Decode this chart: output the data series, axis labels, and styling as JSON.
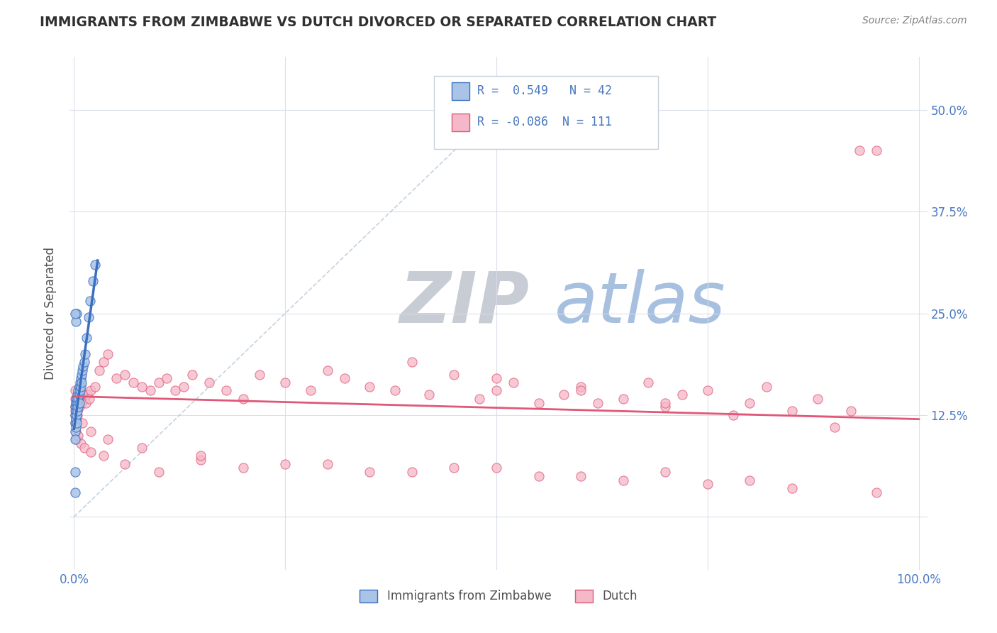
{
  "title": "IMMIGRANTS FROM ZIMBABWE VS DUTCH DIVORCED OR SEPARATED CORRELATION CHART",
  "source": "Source: ZipAtlas.com",
  "ylabel": "Divorced or Separated",
  "legend_label_1": "Immigrants from Zimbabwe",
  "legend_label_2": "Dutch",
  "R1": 0.549,
  "N1": 42,
  "R2": -0.086,
  "N2": 111,
  "color1": "#aac4e8",
  "color2": "#f5b8c8",
  "line_color1": "#3a6fc0",
  "line_color2": "#e05878",
  "bg_color": "#ffffff",
  "grid_color": "#d8dde8",
  "title_color": "#303030",
  "axis_label_color": "#505050",
  "tick_color": "#4878c0",
  "watermark_zip_color": "#c8ccd4",
  "watermark_atlas_color": "#a8c0e0",
  "xlim": [
    -0.005,
    1.01
  ],
  "ylim": [
    -0.065,
    0.565
  ],
  "ytick_positions": [
    0.0,
    0.125,
    0.25,
    0.375,
    0.5
  ],
  "ytick_labels": [
    "",
    "12.5%",
    "25.0%",
    "37.5%",
    "50.0%"
  ],
  "xtick_positions": [
    0.0,
    0.25,
    0.5,
    0.75,
    1.0
  ],
  "xtick_labels": [
    "0.0%",
    "",
    "",
    "",
    "100.0%"
  ],
  "blue_x": [
    0.001,
    0.001,
    0.001,
    0.001,
    0.001,
    0.002,
    0.002,
    0.002,
    0.002,
    0.003,
    0.003,
    0.003,
    0.003,
    0.004,
    0.004,
    0.004,
    0.005,
    0.005,
    0.005,
    0.006,
    0.006,
    0.006,
    0.007,
    0.007,
    0.008,
    0.008,
    0.009,
    0.009,
    0.01,
    0.011,
    0.012,
    0.013,
    0.015,
    0.017,
    0.019,
    0.022,
    0.025,
    0.003,
    0.002,
    0.001,
    0.001,
    0.001
  ],
  "blue_y": [
    0.135,
    0.125,
    0.115,
    0.105,
    0.095,
    0.14,
    0.13,
    0.12,
    0.11,
    0.145,
    0.135,
    0.125,
    0.115,
    0.15,
    0.14,
    0.13,
    0.155,
    0.145,
    0.135,
    0.16,
    0.15,
    0.14,
    0.165,
    0.155,
    0.17,
    0.16,
    0.175,
    0.165,
    0.18,
    0.185,
    0.19,
    0.2,
    0.22,
    0.245,
    0.265,
    0.29,
    0.31,
    0.25,
    0.24,
    0.25,
    0.055,
    0.03
  ],
  "pink_x": [
    0.001,
    0.001,
    0.001,
    0.002,
    0.002,
    0.003,
    0.003,
    0.004,
    0.004,
    0.005,
    0.005,
    0.006,
    0.006,
    0.007,
    0.008,
    0.009,
    0.01,
    0.012,
    0.014,
    0.016,
    0.018,
    0.02,
    0.025,
    0.03,
    0.035,
    0.04,
    0.05,
    0.06,
    0.07,
    0.08,
    0.09,
    0.1,
    0.11,
    0.12,
    0.13,
    0.14,
    0.16,
    0.18,
    0.2,
    0.22,
    0.25,
    0.28,
    0.3,
    0.32,
    0.35,
    0.38,
    0.4,
    0.42,
    0.45,
    0.48,
    0.5,
    0.52,
    0.55,
    0.58,
    0.6,
    0.62,
    0.65,
    0.68,
    0.7,
    0.72,
    0.75,
    0.78,
    0.8,
    0.82,
    0.85,
    0.88,
    0.9,
    0.92,
    0.95,
    0.001,
    0.002,
    0.003,
    0.005,
    0.008,
    0.012,
    0.02,
    0.035,
    0.06,
    0.1,
    0.15,
    0.2,
    0.3,
    0.4,
    0.5,
    0.6,
    0.7,
    0.8,
    0.93,
    0.001,
    0.002,
    0.003,
    0.004,
    0.01,
    0.02,
    0.04,
    0.08,
    0.15,
    0.25,
    0.35,
    0.45,
    0.55,
    0.65,
    0.75,
    0.85,
    0.95,
    0.5,
    0.6,
    0.7,
    0.001,
    0.002
  ],
  "pink_y": [
    0.145,
    0.135,
    0.125,
    0.14,
    0.13,
    0.145,
    0.135,
    0.14,
    0.13,
    0.15,
    0.14,
    0.145,
    0.135,
    0.14,
    0.145,
    0.14,
    0.15,
    0.145,
    0.14,
    0.15,
    0.145,
    0.155,
    0.16,
    0.18,
    0.19,
    0.2,
    0.17,
    0.175,
    0.165,
    0.16,
    0.155,
    0.165,
    0.17,
    0.155,
    0.16,
    0.175,
    0.165,
    0.155,
    0.145,
    0.175,
    0.165,
    0.155,
    0.18,
    0.17,
    0.16,
    0.155,
    0.19,
    0.15,
    0.175,
    0.145,
    0.155,
    0.165,
    0.14,
    0.15,
    0.16,
    0.14,
    0.145,
    0.165,
    0.135,
    0.15,
    0.155,
    0.125,
    0.14,
    0.16,
    0.13,
    0.145,
    0.11,
    0.13,
    0.45,
    0.115,
    0.105,
    0.095,
    0.1,
    0.09,
    0.085,
    0.08,
    0.075,
    0.065,
    0.055,
    0.07,
    0.06,
    0.065,
    0.055,
    0.06,
    0.05,
    0.055,
    0.045,
    0.45,
    0.155,
    0.145,
    0.135,
    0.125,
    0.115,
    0.105,
    0.095,
    0.085,
    0.075,
    0.065,
    0.055,
    0.06,
    0.05,
    0.045,
    0.04,
    0.035,
    0.03,
    0.17,
    0.155,
    0.14,
    0.13,
    0.12
  ],
  "blue_line_x": [
    0.0,
    0.028
  ],
  "blue_line_y": [
    0.108,
    0.315
  ],
  "pink_line_x": [
    0.0,
    1.0
  ],
  "pink_line_y": [
    0.148,
    0.12
  ],
  "diag_line_x": [
    0.0,
    0.52
  ],
  "diag_line_y": [
    0.0,
    0.52
  ]
}
